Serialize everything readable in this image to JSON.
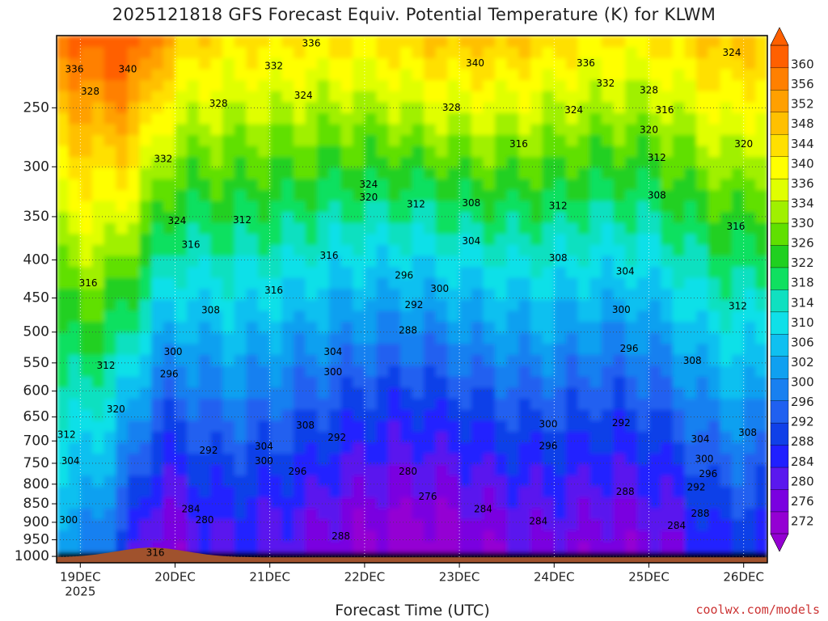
{
  "title": "2025121818 GFS Forecast Equiv. Potential Temperature (K) for KLWM",
  "credit": "coolwx.com/models",
  "colors": {
    "credit": "#cc3333",
    "ground": "#a0522d",
    "colorbar": [
      "#9400d3",
      "#7a00e0",
      "#5a18ee",
      "#2020ff",
      "#1040e8",
      "#2060f0",
      "#1880f0",
      "#10a0f0",
      "#10c0f0",
      "#10e0e8",
      "#10e0c0",
      "#10e060",
      "#20d020",
      "#60e000",
      "#a0f000",
      "#e0ff00",
      "#ffff00",
      "#ffe000",
      "#ffc000",
      "#ffa000",
      "#ff8000",
      "#ff6000"
    ]
  },
  "chart_data": {
    "type": "heatmap",
    "title": "2025121818 GFS Forecast Equiv. Potential Temperature (K) for KLWM",
    "xlabel": "Forecast Time (UTC)",
    "ylabel": "",
    "x_ticks": [
      "19DEC",
      "20DEC",
      "21DEC",
      "22DEC",
      "23DEC",
      "24DEC",
      "25DEC",
      "26DEC"
    ],
    "x_tick_sub": "2025",
    "x_tick_hours": [
      6,
      30,
      54,
      78,
      102,
      126,
      150,
      174
    ],
    "xlim_hours": [
      0,
      180
    ],
    "y_scale": "log-pressure",
    "y_ticks": [
      1000,
      950,
      900,
      850,
      800,
      750,
      700,
      650,
      600,
      550,
      500,
      450,
      400,
      350,
      300,
      250
    ],
    "ylim": [
      1020,
      200
    ],
    "grid": "dotted",
    "colorbar": {
      "placement": "right",
      "unit": "K",
      "labels": [
        360,
        356,
        352,
        348,
        344,
        340,
        336,
        334,
        330,
        326,
        322,
        318,
        314,
        310,
        306,
        302,
        300,
        296,
        292,
        288,
        284,
        280,
        276,
        272
      ]
    },
    "contour_labels": [
      {
        "hour": 4.5,
        "p": 222,
        "v": "336"
      },
      {
        "hour": 18,
        "p": 222,
        "v": "340"
      },
      {
        "hour": 55,
        "p": 220,
        "v": "332"
      },
      {
        "hour": 64.5,
        "p": 205,
        "v": "336"
      },
      {
        "hour": 106,
        "p": 218,
        "v": "340"
      },
      {
        "hour": 134,
        "p": 218,
        "v": "336"
      },
      {
        "hour": 139,
        "p": 232,
        "v": "332"
      },
      {
        "hour": 150,
        "p": 237,
        "v": "328"
      },
      {
        "hour": 171,
        "p": 211,
        "v": "324"
      },
      {
        "hour": 8.5,
        "p": 238,
        "v": "328"
      },
      {
        "hour": 41,
        "p": 247,
        "v": "328"
      },
      {
        "hour": 62.5,
        "p": 241,
        "v": "324"
      },
      {
        "hour": 100,
        "p": 250,
        "v": "328"
      },
      {
        "hour": 131,
        "p": 252,
        "v": "324"
      },
      {
        "hour": 154,
        "p": 252,
        "v": "316"
      },
      {
        "hour": 150,
        "p": 268,
        "v": "320"
      },
      {
        "hour": 117,
        "p": 280,
        "v": "316"
      },
      {
        "hour": 174,
        "p": 280,
        "v": "320"
      },
      {
        "hour": 27,
        "p": 293,
        "v": "332"
      },
      {
        "hour": 152,
        "p": 292,
        "v": "312"
      },
      {
        "hour": 79,
        "p": 317,
        "v": "324"
      },
      {
        "hour": 79,
        "p": 330,
        "v": "320"
      },
      {
        "hour": 91,
        "p": 337,
        "v": "312"
      },
      {
        "hour": 105,
        "p": 336,
        "v": "308"
      },
      {
        "hour": 152,
        "p": 328,
        "v": "308"
      },
      {
        "hour": 127,
        "p": 339,
        "v": "312"
      },
      {
        "hour": 30.5,
        "p": 355,
        "v": "324"
      },
      {
        "hour": 47,
        "p": 354,
        "v": "312"
      },
      {
        "hour": 172,
        "p": 361,
        "v": "316"
      },
      {
        "hour": 34,
        "p": 382,
        "v": "316"
      },
      {
        "hour": 105,
        "p": 378,
        "v": "304"
      },
      {
        "hour": 69,
        "p": 395,
        "v": "316"
      },
      {
        "hour": 127,
        "p": 398,
        "v": "308"
      },
      {
        "hour": 144,
        "p": 415,
        "v": "304"
      },
      {
        "hour": 8,
        "p": 430,
        "v": "316"
      },
      {
        "hour": 88,
        "p": 420,
        "v": "296"
      },
      {
        "hour": 55,
        "p": 440,
        "v": "316"
      },
      {
        "hour": 97,
        "p": 438,
        "v": "300"
      },
      {
        "hour": 90.5,
        "p": 460,
        "v": "292"
      },
      {
        "hour": 39,
        "p": 468,
        "v": "308"
      },
      {
        "hour": 172.5,
        "p": 462,
        "v": "312"
      },
      {
        "hour": 143,
        "p": 467,
        "v": "300"
      },
      {
        "hour": 89,
        "p": 498,
        "v": "288"
      },
      {
        "hour": 145,
        "p": 527,
        "v": "296"
      },
      {
        "hour": 29.5,
        "p": 532,
        "v": "300"
      },
      {
        "hour": 70,
        "p": 532,
        "v": "304"
      },
      {
        "hour": 161,
        "p": 547,
        "v": "308"
      },
      {
        "hour": 12.5,
        "p": 555,
        "v": "312"
      },
      {
        "hour": 70,
        "p": 566,
        "v": "300"
      },
      {
        "hour": 28.5,
        "p": 570,
        "v": "296"
      },
      {
        "hour": 15,
        "p": 635,
        "v": "320"
      },
      {
        "hour": 63,
        "p": 668,
        "v": "308"
      },
      {
        "hour": 124.5,
        "p": 665,
        "v": "300"
      },
      {
        "hour": 143,
        "p": 663,
        "v": "292"
      },
      {
        "hour": 2.5,
        "p": 687,
        "v": "312"
      },
      {
        "hour": 71,
        "p": 693,
        "v": "292"
      },
      {
        "hour": 163,
        "p": 697,
        "v": "304"
      },
      {
        "hour": 175,
        "p": 683,
        "v": "308"
      },
      {
        "hour": 52.5,
        "p": 713,
        "v": "304"
      },
      {
        "hour": 38.5,
        "p": 722,
        "v": "292"
      },
      {
        "hour": 124.5,
        "p": 712,
        "v": "296"
      },
      {
        "hour": 164,
        "p": 741,
        "v": "300"
      },
      {
        "hour": 3.5,
        "p": 745,
        "v": "304"
      },
      {
        "hour": 52.5,
        "p": 745,
        "v": "300"
      },
      {
        "hour": 165,
        "p": 776,
        "v": "296"
      },
      {
        "hour": 89,
        "p": 770,
        "v": "280"
      },
      {
        "hour": 61,
        "p": 770,
        "v": "296"
      },
      {
        "hour": 162,
        "p": 808,
        "v": "292"
      },
      {
        "hour": 144,
        "p": 820,
        "v": "288"
      },
      {
        "hour": 94,
        "p": 832,
        "v": "276"
      },
      {
        "hour": 34,
        "p": 865,
        "v": "284"
      },
      {
        "hour": 108,
        "p": 865,
        "v": "284"
      },
      {
        "hour": 163,
        "p": 877,
        "v": "288"
      },
      {
        "hour": 37.5,
        "p": 895,
        "v": "280"
      },
      {
        "hour": 3,
        "p": 895,
        "v": "300"
      },
      {
        "hour": 122,
        "p": 898,
        "v": "284"
      },
      {
        "hour": 157,
        "p": 910,
        "v": "284"
      },
      {
        "hour": 72,
        "p": 940,
        "v": "288"
      },
      {
        "hour": 25,
        "p": 990,
        "v": "316"
      }
    ]
  }
}
